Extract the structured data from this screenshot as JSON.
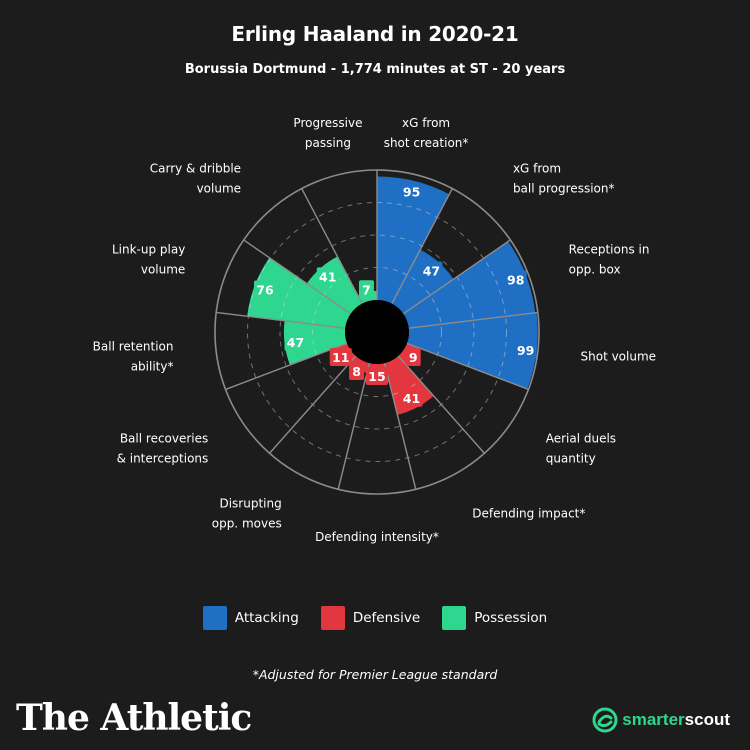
{
  "header": {
    "title": "Erling Haaland in 2020-21",
    "subtitle": "Borussia Dortmund - 1,774 minutes at ST - 20 years"
  },
  "colors": {
    "background": "#1c1c1c",
    "attacking": "#1f6fc4",
    "defensive": "#e3373f",
    "possession": "#2ed68f"
  },
  "chart_data": {
    "type": "polar-area",
    "title": "Erling Haaland in 2020-21",
    "subtitle": "Borussia Dortmund - 1,774 minutes at ST - 20 years",
    "rlim": [
      0,
      100
    ],
    "grid": true,
    "legend_position": "bottom",
    "categories": [
      {
        "label": "xG from shot creation*",
        "group": "Attacking",
        "value": 95
      },
      {
        "label": "xG from ball progression*",
        "group": "Attacking",
        "value": 47
      },
      {
        "label": "Receptions in opp. box",
        "group": "Attacking",
        "value": 98
      },
      {
        "label": "Shot volume",
        "group": "Attacking",
        "value": 99
      },
      {
        "label": "Aerial duels quantity",
        "group": "Defensive",
        "value": 9
      },
      {
        "label": "Defending impact*",
        "group": "Defensive",
        "value": 41
      },
      {
        "label": "Defending intensity*",
        "group": "Defensive",
        "value": 15
      },
      {
        "label": "Disrupting opp. moves",
        "group": "Defensive",
        "value": 8
      },
      {
        "label": "Ball recoveries & interceptions",
        "group": "Defensive",
        "value": 11
      },
      {
        "label": "Ball retention ability*",
        "group": "Possession",
        "value": 47
      },
      {
        "label": "Link-up play volume",
        "group": "Possession",
        "value": 76
      },
      {
        "label": "Carry & dribble volume",
        "group": "Possession",
        "value": 41
      },
      {
        "label": "Progressive passing",
        "group": "Possession",
        "value": 7
      }
    ],
    "label_lines": [
      [
        "xG from",
        "shot creation*"
      ],
      [
        "xG from",
        "ball progression*"
      ],
      [
        "Receptions in",
        "opp. box"
      ],
      [
        "Shot volume"
      ],
      [
        "Aerial duels",
        "quantity"
      ],
      [
        "Defending impact*"
      ],
      [
        "Defending intensity*"
      ],
      [
        "Disrupting",
        "opp. moves"
      ],
      [
        "Ball recoveries",
        "& interceptions"
      ],
      [
        "Ball retention",
        "ability*"
      ],
      [
        "Link-up play",
        "volume"
      ],
      [
        "Carry & dribble",
        "volume"
      ],
      [
        "Progressive",
        "passing"
      ]
    ]
  },
  "legend": {
    "items": [
      {
        "label": "Attacking"
      },
      {
        "label": "Defensive"
      },
      {
        "label": "Possession"
      }
    ]
  },
  "footnote": "*Adjusted for Premier League standard",
  "branding": {
    "publisher": "The Athletic",
    "partner_smart": "smarter",
    "partner_scout": "scout"
  }
}
